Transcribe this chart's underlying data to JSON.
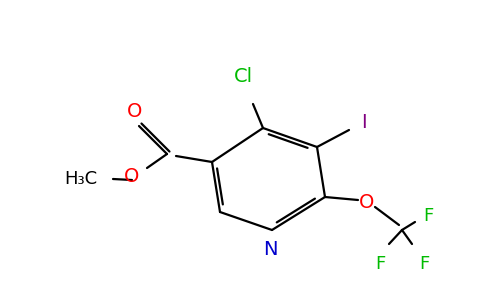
{
  "bg_color": "#ffffff",
  "atom_colors": {
    "N": "#0000cc",
    "O": "#ff0000",
    "Cl": "#00bb00",
    "I": "#800080",
    "F": "#00bb00",
    "C": "#000000"
  },
  "figsize": [
    4.84,
    3.0
  ],
  "dpi": 100
}
